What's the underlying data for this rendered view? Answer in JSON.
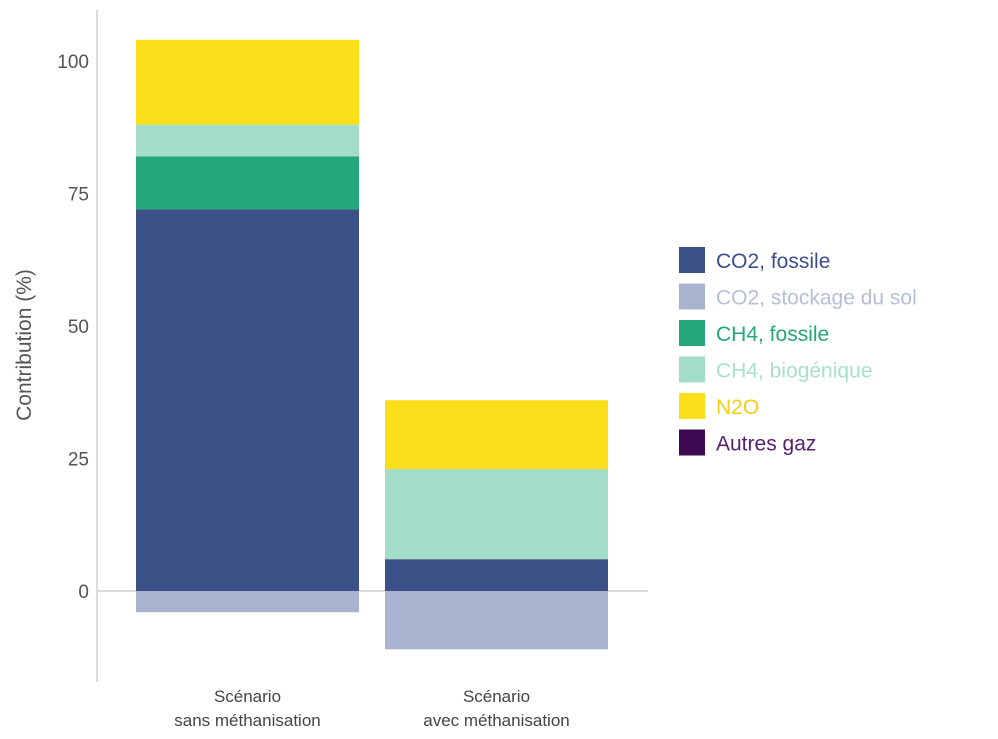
{
  "chart_data": {
    "type": "bar",
    "stacked": true,
    "ylabel": "Contribution (%)",
    "ylim": [
      -15,
      110
    ],
    "yticks": [
      0,
      25,
      50,
      75,
      100
    ],
    "categories": [
      [
        "Scénario",
        "sans méthanisation"
      ],
      [
        "Scénario",
        "avec méthanisation"
      ]
    ],
    "series": [
      {
        "name": "CO2, fossile",
        "color": "#3b5087",
        "values": [
          72,
          6
        ]
      },
      {
        "name": "CO2, stockage du sol",
        "color": "#a9b3cf",
        "values": [
          -4,
          -11
        ]
      },
      {
        "name": "CH4, fossile",
        "color": "#24a77a",
        "values": [
          10,
          0
        ]
      },
      {
        "name": "CH4, biogénique",
        "color": "#a3dcc8",
        "values": [
          6,
          17
        ]
      },
      {
        "name": "N2O",
        "color": "#fbdf1a",
        "values": [
          16,
          13
        ]
      },
      {
        "name": "Autres gaz",
        "color": "#3d0a52",
        "values": [
          0,
          0
        ]
      }
    ],
    "legend": {
      "position": "right",
      "label_colors": [
        "#3b5087",
        "#b6bfd8",
        "#24a77a",
        "#a9e0cc",
        "#f4cf16",
        "#59206f"
      ]
    },
    "grid": false
  }
}
